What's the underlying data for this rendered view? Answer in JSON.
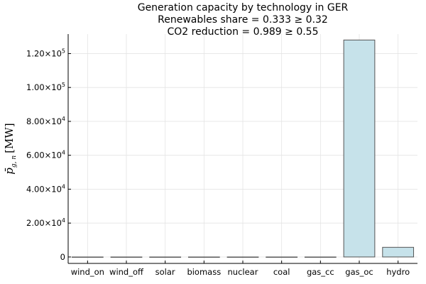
{
  "chart_data": {
    "type": "bar",
    "title_lines": [
      "Generation capacity by technology in GER",
      "Renewables share = 0.333 ≥ 0.32",
      "CO2 reduction = 0.989 ≥ 0.55"
    ],
    "ylabel_math": {
      "base": "p̄",
      "sub": "g, n",
      "unit": "[MW]"
    },
    "categories": [
      "wind_on",
      "wind_off",
      "solar",
      "biomass",
      "nuclear",
      "coal",
      "gas_cc",
      "gas_oc",
      "hydro"
    ],
    "values": [
      0,
      0,
      0,
      0,
      0,
      0,
      0,
      128000,
      5700
    ],
    "ylim": [
      -3800,
      131500
    ],
    "yticks": [
      {
        "value": 0,
        "label": "0"
      },
      {
        "value": 20000,
        "mant": "2.00×10",
        "exp": "4"
      },
      {
        "value": 40000,
        "mant": "4.00×10",
        "exp": "4"
      },
      {
        "value": 60000,
        "mant": "6.00×10",
        "exp": "4"
      },
      {
        "value": 80000,
        "mant": "8.00×10",
        "exp": "4"
      },
      {
        "value": 100000,
        "mant": "1.00×10",
        "exp": "5"
      },
      {
        "value": 120000,
        "mant": "1.20×10",
        "exp": "5"
      }
    ],
    "grid": true,
    "legend": "none",
    "bar_color": "#c6e2ea",
    "bar_edge_color": "#555555"
  }
}
